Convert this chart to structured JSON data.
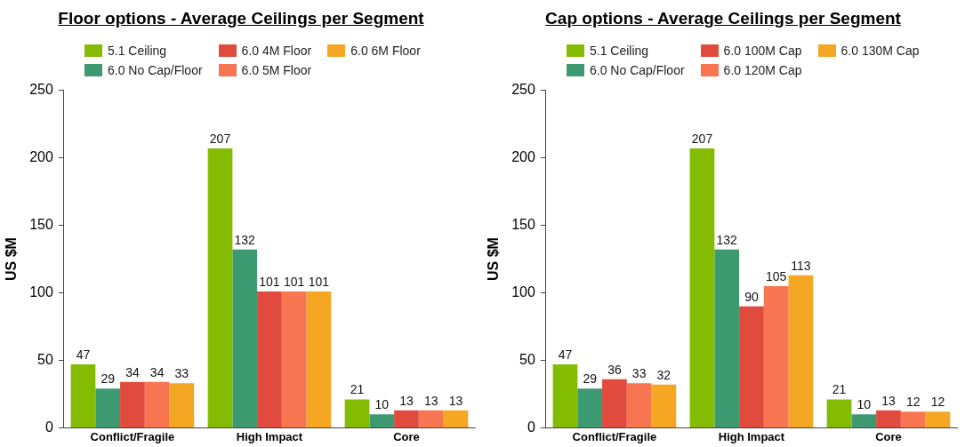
{
  "chart_data": [
    {
      "type": "bar",
      "title": "Floor options - Average Ceilings per Segment",
      "ylabel": "US $M",
      "categories": [
        "Conflict/Fragile",
        "High Impact",
        "Core"
      ],
      "series": [
        {
          "name": "5.1 Ceiling",
          "color": "#84bc04",
          "values": [
            47,
            207,
            21
          ]
        },
        {
          "name": "6.0 No Cap/Floor",
          "color": "#3d9970",
          "values": [
            29,
            132,
            10
          ]
        },
        {
          "name": "6.0 4M Floor",
          "color": "#e04b3e",
          "values": [
            34,
            101,
            13
          ]
        },
        {
          "name": "6.0 5M Floor",
          "color": "#f87552",
          "values": [
            34,
            101,
            13
          ]
        },
        {
          "name": "6.0 6M Floor",
          "color": "#f5a623",
          "values": [
            33,
            101,
            13
          ]
        }
      ],
      "ylim": [
        0,
        250
      ],
      "yticks": [
        0,
        50,
        100,
        150,
        200,
        250
      ],
      "grid": false,
      "legend": "top",
      "data_labels": true
    },
    {
      "type": "bar",
      "title": "Cap options - Average Ceilings per Segment",
      "ylabel": "US $M",
      "categories": [
        "Conflict/Fragile",
        "High Impact",
        "Core"
      ],
      "series": [
        {
          "name": "5.1 Ceiling",
          "color": "#84bc04",
          "values": [
            47,
            207,
            21
          ]
        },
        {
          "name": "6.0 No Cap/Floor",
          "color": "#3d9970",
          "values": [
            29,
            132,
            10
          ]
        },
        {
          "name": "6.0 100M Cap",
          "color": "#e04b3e",
          "values": [
            36,
            90,
            13
          ]
        },
        {
          "name": "6.0 120M Cap",
          "color": "#f87552",
          "values": [
            33,
            105,
            12
          ]
        },
        {
          "name": "6.0 130M Cap",
          "color": "#f5a623",
          "values": [
            32,
            113,
            12
          ]
        }
      ],
      "ylim": [
        0,
        250
      ],
      "yticks": [
        0,
        50,
        100,
        150,
        200,
        250
      ],
      "grid": false,
      "legend": "top",
      "data_labels": true
    }
  ]
}
